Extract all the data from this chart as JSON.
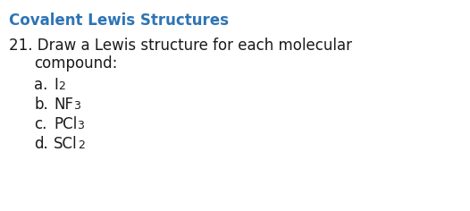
{
  "background_color": "#ffffff",
  "title": "Covalent Lewis Structures",
  "title_color": "#2E74B5",
  "title_fontsize": 12,
  "question_number": "21.",
  "question_text": " Draw a Lewis structure for each molecular",
  "question_text2": "compound:",
  "question_color": "#1a1a1a",
  "question_fontsize": 12,
  "items": [
    {
      "label": "a.",
      "main": "I",
      "sub": "2"
    },
    {
      "label": "b.",
      "main": "NF",
      "sub": "3"
    },
    {
      "label": "c.",
      "main": "PCl",
      "sub": "3"
    },
    {
      "label": "d.",
      "main": "SCl",
      "sub": "2"
    }
  ],
  "item_color": "#1a1a1a",
  "item_fontsize": 12
}
